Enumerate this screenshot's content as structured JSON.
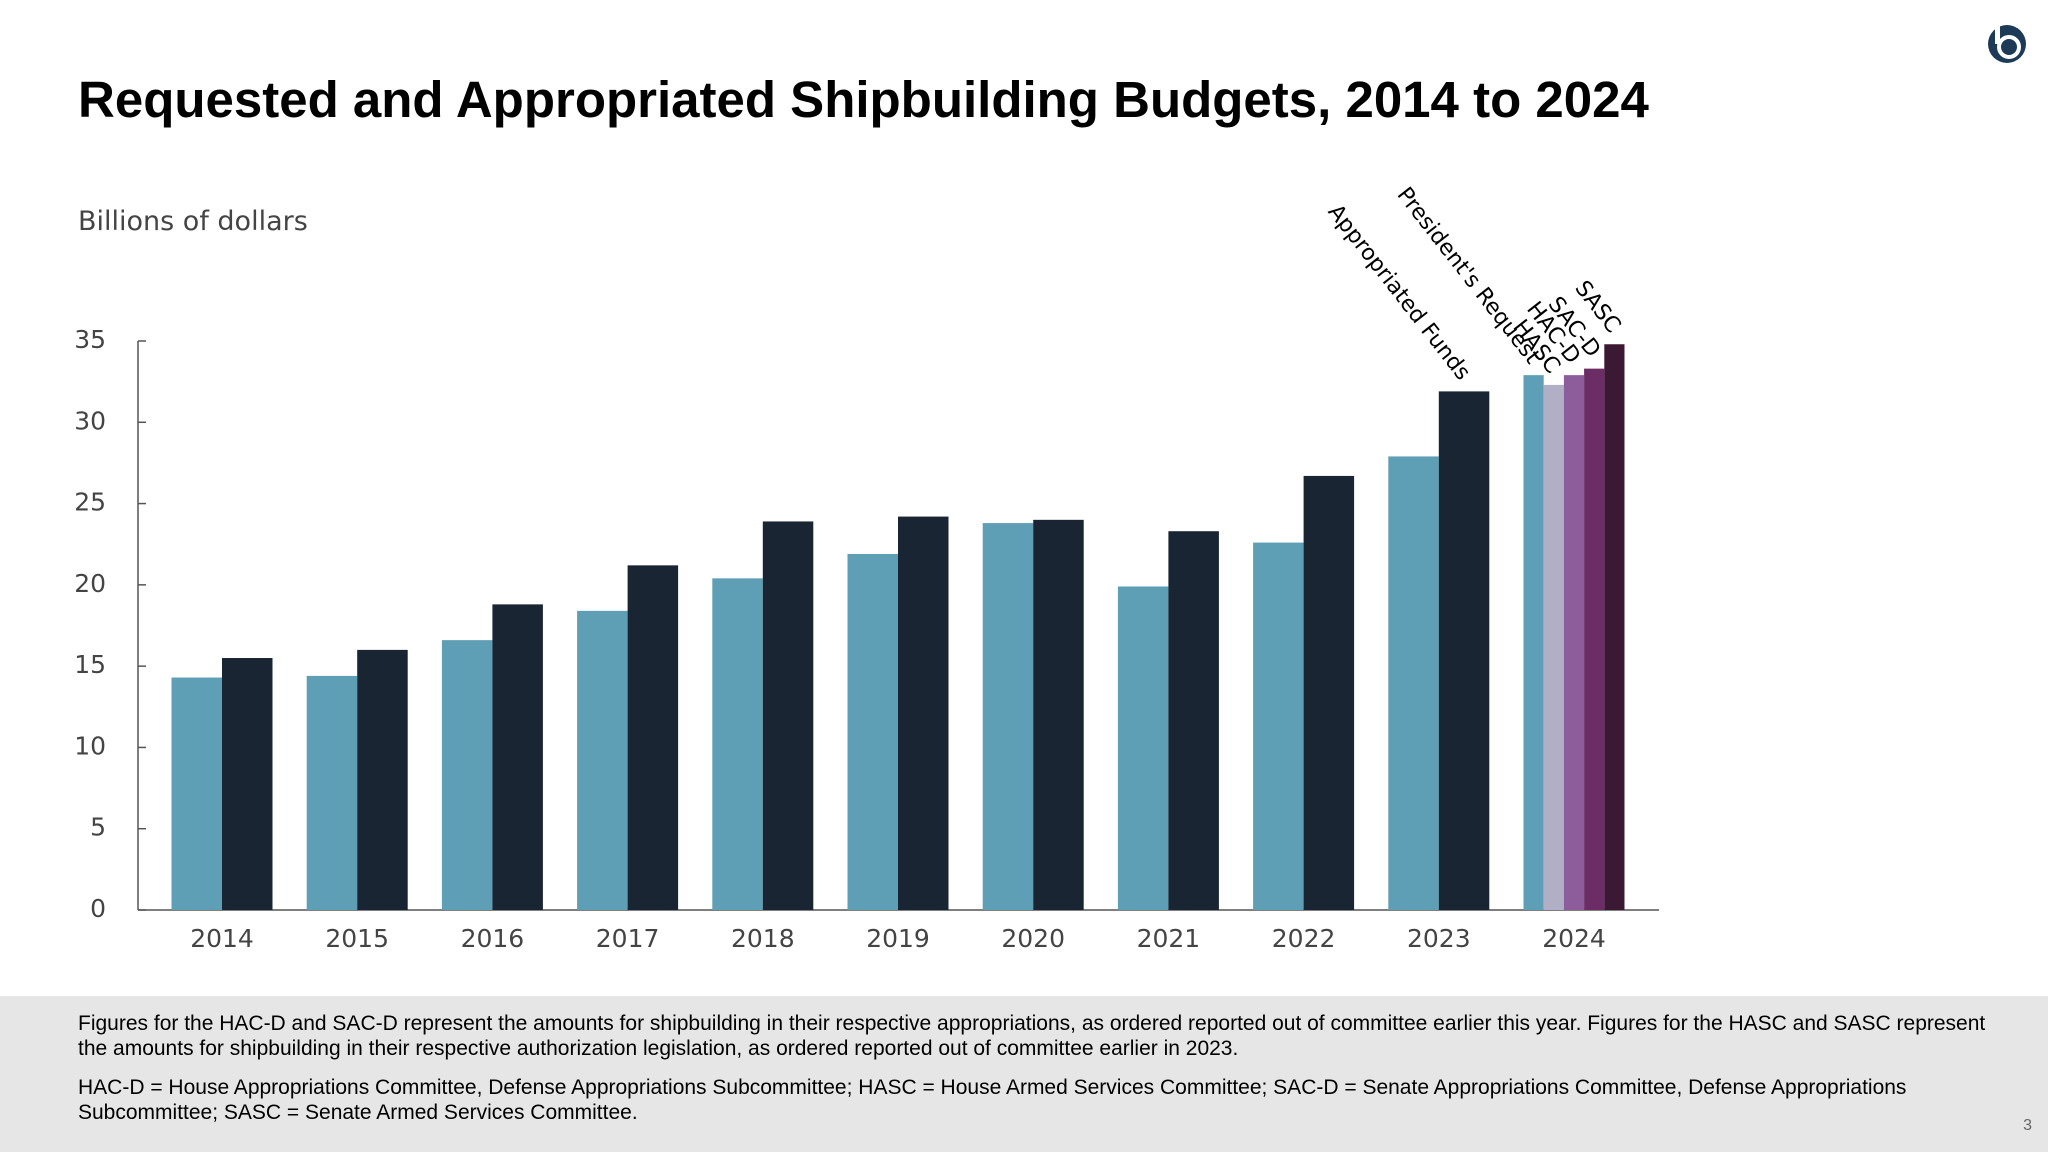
{
  "title": "Requested and Appropriated Shipbuilding Budgets, 2014 to 2024",
  "chart_data": {
    "type": "bar",
    "y_label": "Billions of dollars",
    "categories": [
      "2014",
      "2015",
      "2016",
      "2017",
      "2018",
      "2019",
      "2020",
      "2021",
      "2022",
      "2023",
      "2024"
    ],
    "series": [
      {
        "name": "President's Request",
        "color": "#5f9fb5",
        "values": [
          14.3,
          14.4,
          16.6,
          18.4,
          20.4,
          21.9,
          23.8,
          19.9,
          22.6,
          27.9,
          32.9
        ]
      },
      {
        "name": "Appropriated Funds",
        "color": "#1a2533",
        "values": [
          15.5,
          16.0,
          18.8,
          21.2,
          23.9,
          24.2,
          24.0,
          23.3,
          26.7,
          31.9,
          null
        ]
      },
      {
        "name": "HASC",
        "color": "#b1afc6",
        "values": [
          null,
          null,
          null,
          null,
          null,
          null,
          null,
          null,
          null,
          null,
          32.3
        ]
      },
      {
        "name": "HAC-D",
        "color": "#8c5c9b",
        "values": [
          null,
          null,
          null,
          null,
          null,
          null,
          null,
          null,
          null,
          null,
          32.9
        ]
      },
      {
        "name": "SAC-D",
        "color": "#6c2c66",
        "values": [
          null,
          null,
          null,
          null,
          null,
          null,
          null,
          null,
          null,
          null,
          33.3
        ]
      },
      {
        "name": "SASC",
        "color": "#3b1833",
        "values": [
          null,
          null,
          null,
          null,
          null,
          null,
          null,
          null,
          null,
          null,
          34.8
        ]
      }
    ],
    "ylim": [
      0,
      35
    ],
    "yticks": [
      0,
      5,
      10,
      15,
      20,
      25,
      30,
      35
    ]
  },
  "notes": [
    "Figures for the HAC-D and SAC-D represent the amounts for shipbuilding in their respective appropriations, as ordered reported out of committee earlier this year. Figures for the HASC and SASC represent the amounts for shipbuilding in their respective authorization legislation, as ordered reported out of committee earlier in 2023.",
    "HAC-D = House Appropriations Committee, Defense Appropriations Subcommittee; HASC = House Armed Services Committee; SAC-D = Senate Appropriations Committee, Defense Appropriations Subcommittee; SASC = Senate Armed Services Committee."
  ],
  "page_number": 3
}
